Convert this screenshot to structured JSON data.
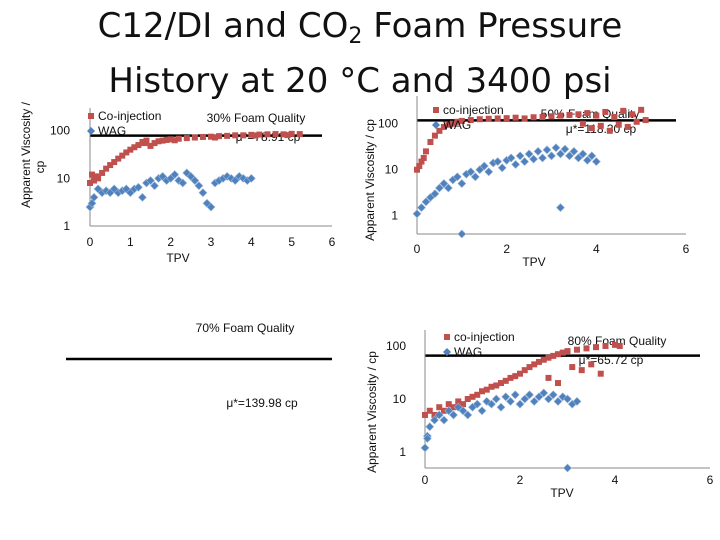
{
  "title": {
    "line1": "C12/DI and CO",
    "sub": "2",
    "line1b": " Foam Pressure",
    "line2": "History at 20 °C and 3400 psi"
  },
  "colors": {
    "coinjection": "#c0504d",
    "wag": "#4f81bd",
    "muLine": "#000000"
  },
  "chart_data": [
    {
      "type": "scatter",
      "title": "30% Foam Quality",
      "annotation": "μ*=78.91 cp",
      "ylabel": "Apparent Viscosity / cp",
      "xlabel": "TPV",
      "yscale": "log",
      "ylim": [
        1,
        300
      ],
      "xlim": [
        0,
        6
      ],
      "xticks": [
        "0",
        "1",
        "2",
        "3",
        "4",
        "5",
        "6"
      ],
      "yticks": [
        "1",
        "10",
        "100"
      ],
      "muValue": 78.91,
      "legend": [
        "Co-injection",
        "WAG"
      ],
      "series": [
        {
          "name": "Co-injection",
          "points": [
            [
              0.0,
              8
            ],
            [
              0.1,
              9
            ],
            [
              0.2,
              10
            ],
            [
              0.3,
              13
            ],
            [
              0.4,
              16
            ],
            [
              0.5,
              19
            ],
            [
              0.6,
              22
            ],
            [
              0.7,
              26
            ],
            [
              0.8,
              30
            ],
            [
              0.9,
              35
            ],
            [
              1.0,
              40
            ],
            [
              1.1,
              45
            ],
            [
              1.2,
              50
            ],
            [
              1.3,
              58
            ],
            [
              1.4,
              62
            ],
            [
              1.5,
              48
            ],
            [
              1.6,
              55
            ],
            [
              1.7,
              60
            ],
            [
              1.8,
              62
            ],
            [
              1.9,
              64
            ],
            [
              2.0,
              66
            ],
            [
              2.2,
              68
            ],
            [
              2.4,
              70
            ],
            [
              2.6,
              72
            ],
            [
              2.8,
              74
            ],
            [
              3.0,
              75
            ],
            [
              3.2,
              77
            ],
            [
              3.4,
              78
            ],
            [
              3.6,
              80
            ],
            [
              3.8,
              80
            ],
            [
              4.0,
              82
            ],
            [
              4.2,
              83
            ],
            [
              4.4,
              84
            ],
            [
              4.6,
              85
            ],
            [
              4.8,
              84
            ],
            [
              5.0,
              86
            ],
            [
              5.2,
              85
            ],
            [
              0.05,
              12
            ],
            [
              0.15,
              11
            ],
            [
              1.35,
              55
            ],
            [
              2.1,
              63
            ],
            [
              3.1,
              72
            ],
            [
              4.1,
              79
            ],
            [
              4.9,
              81
            ]
          ]
        },
        {
          "name": "WAG",
          "points": [
            [
              0.0,
              2.5
            ],
            [
              0.05,
              3
            ],
            [
              0.1,
              4
            ],
            [
              0.2,
              6
            ],
            [
              0.3,
              5
            ],
            [
              0.4,
              5.5
            ],
            [
              0.5,
              5
            ],
            [
              0.6,
              6
            ],
            [
              0.7,
              5
            ],
            [
              0.8,
              5.5
            ],
            [
              0.9,
              6
            ],
            [
              1.0,
              5
            ],
            [
              1.1,
              6
            ],
            [
              1.2,
              6.5
            ],
            [
              1.3,
              4
            ],
            [
              1.4,
              8
            ],
            [
              1.5,
              9
            ],
            [
              1.6,
              7
            ],
            [
              1.7,
              10
            ],
            [
              1.8,
              11
            ],
            [
              1.9,
              9
            ],
            [
              2.0,
              10
            ],
            [
              2.1,
              12
            ],
            [
              2.2,
              9
            ],
            [
              2.3,
              8
            ],
            [
              2.4,
              13
            ],
            [
              2.5,
              11
            ],
            [
              2.6,
              9
            ],
            [
              2.7,
              7
            ],
            [
              2.8,
              5
            ],
            [
              2.9,
              3
            ],
            [
              3.0,
              2.5
            ],
            [
              3.1,
              8
            ],
            [
              3.2,
              9
            ],
            [
              3.3,
              10
            ],
            [
              3.4,
              11
            ],
            [
              3.5,
              10
            ],
            [
              3.6,
              9
            ],
            [
              3.7,
              11
            ],
            [
              3.8,
              10
            ],
            [
              3.9,
              9
            ],
            [
              4.0,
              10
            ]
          ]
        }
      ]
    },
    {
      "type": "scatter",
      "title": "50% Foam Quality",
      "annotation": "μ*=118.30 cp",
      "ylabel": "Apparent Viscosity / cp",
      "xlabel": "TPV",
      "yscale": "log",
      "ylim": [
        0.4,
        400
      ],
      "xlim": [
        0,
        6
      ],
      "xticks": [
        "0",
        "2",
        "4",
        "6"
      ],
      "yticks": [
        "1",
        "10",
        "100"
      ],
      "muValue": 118.3,
      "legend": [
        "co-injection",
        "WAG"
      ],
      "series": [
        {
          "name": "co-injection",
          "points": [
            [
              0.0,
              10
            ],
            [
              0.1,
              15
            ],
            [
              0.2,
              25
            ],
            [
              0.3,
              40
            ],
            [
              0.4,
              55
            ],
            [
              0.5,
              70
            ],
            [
              0.6,
              85
            ],
            [
              0.7,
              95
            ],
            [
              0.8,
              100
            ],
            [
              0.9,
              110
            ],
            [
              1.0,
              115
            ],
            [
              1.2,
              120
            ],
            [
              1.4,
              125
            ],
            [
              1.6,
              128
            ],
            [
              1.8,
              130
            ],
            [
              2.0,
              132
            ],
            [
              2.2,
              135
            ],
            [
              2.4,
              130
            ],
            [
              2.6,
              138
            ],
            [
              2.8,
              140
            ],
            [
              3.0,
              145
            ],
            [
              3.2,
              150
            ],
            [
              3.4,
              155
            ],
            [
              3.6,
              160
            ],
            [
              3.8,
              170
            ],
            [
              4.0,
              150
            ],
            [
              4.2,
              180
            ],
            [
              4.4,
              140
            ],
            [
              4.6,
              190
            ],
            [
              4.8,
              160
            ],
            [
              5.0,
              200
            ],
            [
              3.7,
              100
            ],
            [
              3.9,
              80
            ],
            [
              4.1,
              90
            ],
            [
              4.3,
              70
            ],
            [
              4.5,
              95
            ],
            [
              4.7,
              85
            ],
            [
              4.9,
              110
            ],
            [
              5.1,
              120
            ],
            [
              0.05,
              12
            ],
            [
              0.15,
              18
            ]
          ]
        },
        {
          "name": "WAG",
          "points": [
            [
              0.0,
              1.1
            ],
            [
              0.1,
              1.5
            ],
            [
              0.2,
              2
            ],
            [
              0.3,
              2.5
            ],
            [
              0.4,
              3
            ],
            [
              0.5,
              4
            ],
            [
              0.6,
              5
            ],
            [
              0.7,
              4
            ],
            [
              0.8,
              6
            ],
            [
              0.9,
              7
            ],
            [
              1.0,
              5
            ],
            [
              1.1,
              8
            ],
            [
              1.2,
              9
            ],
            [
              1.3,
              7
            ],
            [
              1.4,
              10
            ],
            [
              1.5,
              12
            ],
            [
              1.6,
              9
            ],
            [
              1.7,
              14
            ],
            [
              1.8,
              15
            ],
            [
              1.9,
              11
            ],
            [
              2.0,
              16
            ],
            [
              2.1,
              18
            ],
            [
              2.2,
              13
            ],
            [
              2.3,
              20
            ],
            [
              2.4,
              15
            ],
            [
              2.5,
              22
            ],
            [
              2.6,
              17
            ],
            [
              2.7,
              25
            ],
            [
              2.8,
              18
            ],
            [
              2.9,
              27
            ],
            [
              3.0,
              20
            ],
            [
              3.1,
              30
            ],
            [
              3.2,
              22
            ],
            [
              3.3,
              28
            ],
            [
              3.4,
              20
            ],
            [
              3.5,
              25
            ],
            [
              3.6,
              18
            ],
            [
              3.7,
              22
            ],
            [
              3.8,
              16
            ],
            [
              3.9,
              20
            ],
            [
              4.0,
              15
            ],
            [
              1.0,
              0.4
            ],
            [
              3.2,
              1.5
            ]
          ]
        }
      ]
    },
    {
      "type": "scatter",
      "title": "70% Foam Quality",
      "annotation": "μ*=139.98 cp",
      "ylabel": "",
      "xlabel": "",
      "yscale": "log",
      "ylim": [
        1,
        1000
      ],
      "xlim": [
        0,
        6
      ],
      "xticks": [],
      "yticks": [],
      "muValue": 139.98,
      "legend": [],
      "series": []
    },
    {
      "type": "scatter",
      "title": "80% Foam Quality",
      "annotation": "μ*=65.72 cp",
      "ylabel": "Apparent Viscosity / cp",
      "xlabel": "TPV",
      "yscale": "log",
      "ylim": [
        0.5,
        200
      ],
      "xlim": [
        0,
        6
      ],
      "xticks": [
        "0",
        "2",
        "4",
        "6"
      ],
      "yticks": [
        "1",
        "10",
        "100"
      ],
      "muValue": 65.72,
      "legend": [
        "co-injection",
        "WAG"
      ],
      "series": [
        {
          "name": "co-injection",
          "points": [
            [
              0.0,
              5
            ],
            [
              0.1,
              6
            ],
            [
              0.2,
              5
            ],
            [
              0.3,
              7
            ],
            [
              0.4,
              6
            ],
            [
              0.5,
              8
            ],
            [
              0.6,
              7
            ],
            [
              0.7,
              9
            ],
            [
              0.8,
              8
            ],
            [
              0.9,
              10
            ],
            [
              1.0,
              11
            ],
            [
              1.1,
              12
            ],
            [
              1.2,
              14
            ],
            [
              1.3,
              15
            ],
            [
              1.4,
              17
            ],
            [
              1.5,
              18
            ],
            [
              1.6,
              20
            ],
            [
              1.7,
              22
            ],
            [
              1.8,
              25
            ],
            [
              1.9,
              27
            ],
            [
              2.0,
              30
            ],
            [
              2.1,
              35
            ],
            [
              2.2,
              40
            ],
            [
              2.3,
              45
            ],
            [
              2.4,
              50
            ],
            [
              2.5,
              55
            ],
            [
              2.6,
              60
            ],
            [
              2.7,
              65
            ],
            [
              2.8,
              70
            ],
            [
              2.9,
              75
            ],
            [
              3.0,
              80
            ],
            [
              3.2,
              85
            ],
            [
              3.4,
              90
            ],
            [
              3.6,
              95
            ],
            [
              3.8,
              100
            ],
            [
              4.0,
              105
            ],
            [
              4.1,
              100
            ],
            [
              3.1,
              40
            ],
            [
              3.3,
              35
            ],
            [
              3.5,
              45
            ],
            [
              3.7,
              30
            ],
            [
              2.6,
              25
            ],
            [
              2.8,
              20
            ]
          ]
        },
        {
          "name": "WAG",
          "points": [
            [
              0.0,
              1.2
            ],
            [
              0.05,
              2
            ],
            [
              0.1,
              3
            ],
            [
              0.2,
              4
            ],
            [
              0.3,
              5
            ],
            [
              0.4,
              4
            ],
            [
              0.5,
              6
            ],
            [
              0.6,
              5
            ],
            [
              0.7,
              7
            ],
            [
              0.8,
              6
            ],
            [
              0.9,
              5
            ],
            [
              1.0,
              7
            ],
            [
              1.1,
              8
            ],
            [
              1.2,
              6
            ],
            [
              1.3,
              9
            ],
            [
              1.4,
              8
            ],
            [
              1.5,
              10
            ],
            [
              1.6,
              7
            ],
            [
              1.7,
              11
            ],
            [
              1.8,
              9
            ],
            [
              1.9,
              12
            ],
            [
              2.0,
              8
            ],
            [
              2.1,
              10
            ],
            [
              2.2,
              12
            ],
            [
              2.3,
              9
            ],
            [
              2.4,
              11
            ],
            [
              2.5,
              13
            ],
            [
              2.6,
              10
            ],
            [
              2.7,
              12
            ],
            [
              2.8,
              9
            ],
            [
              2.9,
              11
            ],
            [
              3.0,
              10
            ],
            [
              3.1,
              8
            ],
            [
              3.2,
              9
            ],
            [
              3.0,
              0.5
            ],
            [
              0.05,
              1.8
            ]
          ]
        }
      ]
    }
  ]
}
